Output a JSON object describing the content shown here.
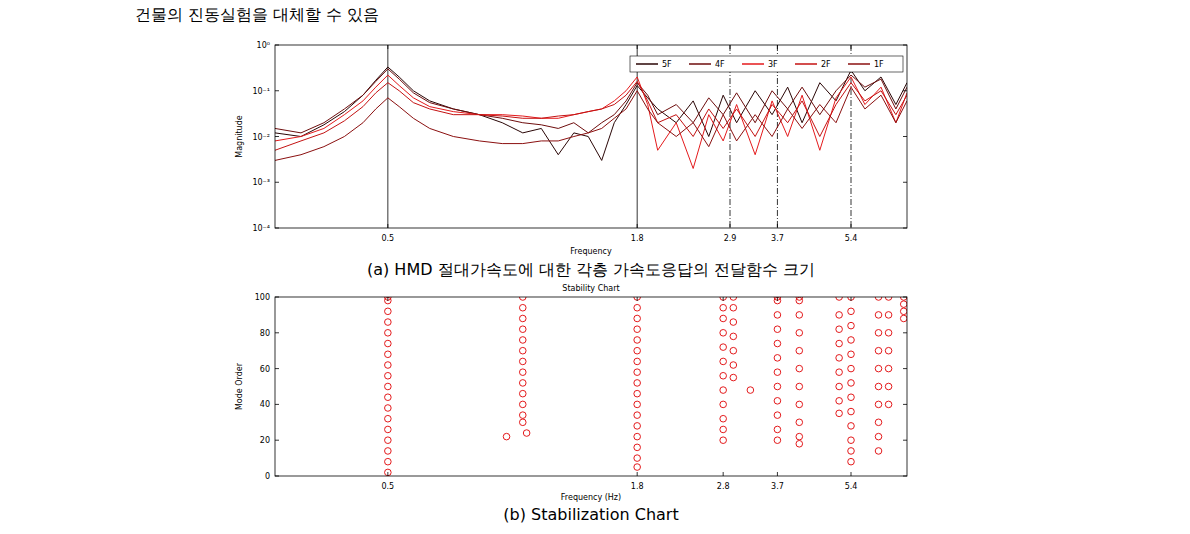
{
  "header": "건물의 진동실험을 대체할 수 있음",
  "chart_data": [
    {
      "type": "line",
      "caption": "(a) HMD 절대가속도에 대한 각층 가속도응답의 전달함수 크기",
      "x_label": "Frequency",
      "y_label": "Magnitude",
      "log": true,
      "grid": false,
      "legend": "upper right",
      "xlim": [
        0.28,
        7.2
      ],
      "ylim": [
        0.0001,
        1
      ],
      "xticks": [
        0.5,
        1.8,
        2.9,
        3.7,
        5.4
      ],
      "yticks": [
        {
          "value": 1,
          "label": "10⁰"
        },
        {
          "value": 0.1,
          "label": "10⁻¹"
        },
        {
          "value": 0.01,
          "label": "10⁻²"
        },
        {
          "value": 0.001,
          "label": "10⁻³"
        },
        {
          "value": 0.0001,
          "label": "10⁻⁴"
        }
      ],
      "vlines": [
        {
          "value": 0.5,
          "line_style": "solid"
        },
        {
          "value": 1.8,
          "line_style": "solid"
        },
        {
          "value": 2.9,
          "line_style": "dashdot"
        },
        {
          "value": 3.7,
          "line_style": "dashdot"
        },
        {
          "value": 5.4,
          "line_style": "dashdot"
        }
      ],
      "x": [
        0.28,
        0.32,
        0.36,
        0.4,
        0.44,
        0.47,
        0.5,
        0.53,
        0.57,
        0.62,
        0.7,
        0.8,
        0.9,
        1.0,
        1.1,
        1.2,
        1.3,
        1.4,
        1.5,
        1.6,
        1.7,
        1.8,
        1.9,
        2.0,
        2.2,
        2.4,
        2.6,
        2.8,
        3.0,
        3.3,
        3.6,
        3.9,
        4.2,
        4.6,
        5.0,
        5.4,
        5.8,
        6.3,
        6.8,
        7.2
      ],
      "series": [
        {
          "name": "5F",
          "color": "#2a0606",
          "values": [
            0.012,
            0.01,
            0.018,
            0.035,
            0.08,
            0.17,
            0.33,
            0.2,
            0.1,
            0.06,
            0.04,
            0.03,
            0.02,
            0.012,
            0.015,
            0.004,
            0.012,
            0.01,
            0.003,
            0.02,
            0.05,
            0.13,
            0.07,
            0.04,
            0.02,
            0.06,
            0.01,
            0.08,
            0.02,
            0.1,
            0.03,
            0.12,
            0.02,
            0.15,
            0.06,
            0.28,
            0.1,
            0.2,
            0.05,
            0.15
          ]
        },
        {
          "name": "4F",
          "color": "#6e0d0d",
          "values": [
            0.015,
            0.012,
            0.02,
            0.04,
            0.08,
            0.16,
            0.3,
            0.18,
            0.09,
            0.055,
            0.04,
            0.03,
            0.025,
            0.02,
            0.018,
            0.015,
            0.02,
            0.012,
            0.02,
            0.03,
            0.06,
            0.15,
            0.08,
            0.03,
            0.05,
            0.02,
            0.07,
            0.03,
            0.09,
            0.02,
            0.1,
            0.04,
            0.12,
            0.03,
            0.1,
            0.22,
            0.12,
            0.18,
            0.04,
            0.12
          ]
        },
        {
          "name": "3F",
          "color": "#e41a1c",
          "values": [
            0.008,
            0.01,
            0.015,
            0.03,
            0.06,
            0.12,
            0.22,
            0.13,
            0.07,
            0.045,
            0.035,
            0.03,
            0.03,
            0.028,
            0.025,
            0.025,
            0.03,
            0.035,
            0.04,
            0.06,
            0.1,
            0.2,
            0.05,
            0.005,
            0.02,
            0.002,
            0.03,
            0.008,
            0.05,
            0.004,
            0.06,
            0.01,
            0.08,
            0.005,
            0.07,
            0.2,
            0.05,
            0.12,
            0.02,
            0.09
          ]
        },
        {
          "name": "2F",
          "color": "#c41212",
          "values": [
            0.005,
            0.008,
            0.012,
            0.022,
            0.045,
            0.09,
            0.15,
            0.1,
            0.055,
            0.04,
            0.03,
            0.03,
            0.028,
            0.025,
            0.025,
            0.028,
            0.03,
            0.035,
            0.04,
            0.05,
            0.08,
            0.16,
            0.06,
            0.02,
            0.03,
            0.01,
            0.04,
            0.015,
            0.04,
            0.01,
            0.05,
            0.02,
            0.06,
            0.01,
            0.05,
            0.15,
            0.06,
            0.1,
            0.03,
            0.08
          ]
        },
        {
          "name": "1F",
          "color": "#8b1010",
          "values": [
            0.003,
            0.004,
            0.006,
            0.01,
            0.02,
            0.04,
            0.07,
            0.045,
            0.025,
            0.015,
            0.01,
            0.008,
            0.007,
            0.007,
            0.008,
            0.008,
            0.01,
            0.012,
            0.015,
            0.025,
            0.04,
            0.1,
            0.04,
            0.02,
            0.01,
            0.02,
            0.006,
            0.03,
            0.008,
            0.03,
            0.01,
            0.04,
            0.015,
            0.05,
            0.02,
            0.12,
            0.04,
            0.08,
            0.02,
            0.06
          ]
        }
      ]
    },
    {
      "type": "scatter",
      "title": "Stability Chart",
      "caption": "(b) Stabilization Chart",
      "x_label": "Frequency (Hz)",
      "y_label": "Mode Order",
      "log": "x",
      "grid": false,
      "xlim": [
        0.28,
        7.2
      ],
      "ylim": [
        0,
        100
      ],
      "xticks": [
        0.5,
        1.8,
        2.8,
        3.7,
        5.4
      ],
      "yticks": [
        0,
        20,
        40,
        60,
        80,
        100
      ],
      "series": [
        {
          "color": "#e41a1c",
          "marker": "circle",
          "x": [
            0.5,
            0.5,
            0.5,
            0.5,
            0.5,
            0.5,
            0.5,
            0.5,
            0.5,
            0.5,
            0.5,
            0.5,
            0.5,
            0.5,
            0.5,
            0.5,
            0.5,
            0.5,
            0.92,
            1.02,
            1.0,
            1.0,
            1.0,
            1.0,
            1.0,
            1.0,
            1.0,
            1.0,
            1.0,
            1.0,
            1.0,
            1.0,
            1.0,
            1.8,
            1.8,
            1.8,
            1.8,
            1.8,
            1.8,
            1.8,
            1.8,
            1.8,
            1.8,
            1.8,
            1.8,
            1.8,
            1.8,
            1.8,
            1.8,
            1.8,
            2.8,
            2.8,
            2.8,
            2.8,
            2.8,
            2.8,
            2.8,
            2.8,
            2.8,
            2.8,
            2.8,
            2.8,
            2.95,
            2.95,
            2.95,
            2.95,
            2.95,
            2.95,
            2.95,
            3.22,
            3.7,
            3.7,
            3.7,
            3.7,
            3.7,
            3.7,
            3.7,
            3.7,
            3.7,
            3.7,
            3.7,
            3.7,
            4.14,
            4.14,
            4.14,
            4.14,
            4.14,
            4.14,
            4.14,
            4.14,
            4.14,
            4.14,
            4.14,
            5.08,
            5.08,
            5.08,
            5.08,
            5.08,
            5.08,
            5.08,
            5.08,
            5.08,
            5.4,
            5.4,
            5.4,
            5.4,
            5.4,
            5.4,
            5.4,
            5.4,
            5.4,
            5.4,
            5.4,
            5.4,
            5.4,
            6.22,
            6.22,
            6.22,
            6.22,
            6.22,
            6.22,
            6.22,
            6.22,
            6.22,
            6.22,
            6.55,
            6.55,
            6.55,
            6.55,
            6.55,
            6.55,
            6.55,
            7.08,
            7.08,
            7.08,
            7.08
          ],
          "values": [
            2,
            8,
            14,
            20,
            26,
            32,
            38,
            44,
            50,
            56,
            62,
            68,
            74,
            80,
            86,
            92,
            98,
            100,
            22,
            24,
            30,
            34,
            40,
            46,
            52,
            58,
            64,
            70,
            76,
            82,
            88,
            94,
            100,
            5,
            10,
            16,
            22,
            28,
            34,
            40,
            46,
            52,
            58,
            64,
            70,
            76,
            82,
            88,
            94,
            100,
            20,
            26,
            32,
            40,
            48,
            56,
            64,
            72,
            80,
            88,
            94,
            100,
            55,
            62,
            70,
            78,
            86,
            94,
            100,
            48,
            20,
            26,
            34,
            42,
            50,
            58,
            66,
            74,
            82,
            90,
            98,
            100,
            18,
            22,
            30,
            40,
            50,
            60,
            70,
            80,
            90,
            98,
            100,
            35,
            42,
            50,
            58,
            66,
            74,
            82,
            90,
            100,
            8,
            14,
            20,
            28,
            36,
            44,
            52,
            60,
            68,
            76,
            84,
            92,
            100,
            14,
            22,
            30,
            40,
            50,
            60,
            70,
            80,
            90,
            100,
            40,
            50,
            60,
            70,
            80,
            90,
            100,
            88,
            92,
            96,
            100
          ]
        }
      ]
    }
  ]
}
